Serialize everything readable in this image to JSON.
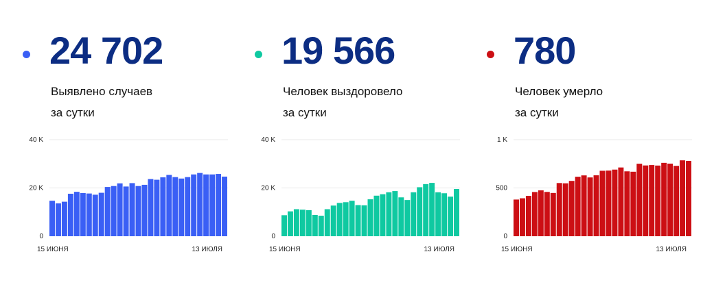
{
  "panels": [
    {
      "value": "24 702",
      "desc_line1": "Выявлено случаев",
      "desc_line2": "за сутки",
      "color": "#3a5ff5"
    },
    {
      "value": "19 566",
      "desc_line1": "Человек выздоровело",
      "desc_line2": "за сутки",
      "color": "#0fc9a1"
    },
    {
      "value": "780",
      "desc_line1": "Человек умерло",
      "desc_line2": "за сутки",
      "color": "#cc0f14"
    }
  ],
  "chart_data": [
    {
      "type": "bar",
      "x_start_label": "15 ИЮНЯ",
      "x_end_label": "13 ИЮЛЯ",
      "ylim": [
        0,
        40000
      ],
      "y_ticks": [
        0,
        20000,
        40000
      ],
      "y_tick_labels": [
        "0",
        "20 K",
        "40 K"
      ],
      "grid": true,
      "color": "#3a5ff5",
      "values": [
        14700,
        13600,
        14300,
        17600,
        18400,
        17900,
        17700,
        17200,
        18000,
        20400,
        20800,
        21900,
        20600,
        22000,
        20800,
        21300,
        23700,
        23400,
        24400,
        25400,
        24500,
        23900,
        24500,
        25600,
        26200,
        25600,
        25600,
        25800,
        24702
      ]
    },
    {
      "type": "bar",
      "x_start_label": "15 ИЮНЯ",
      "x_end_label": "13 ИЮЛЯ",
      "ylim": [
        0,
        40000
      ],
      "y_ticks": [
        0,
        20000,
        40000
      ],
      "y_tick_labels": [
        "0",
        "20 K",
        "40 K"
      ],
      "grid": true,
      "color": "#0fc9a1",
      "values": [
        8700,
        10300,
        11200,
        11000,
        10800,
        8800,
        8500,
        11200,
        12700,
        13800,
        14100,
        14700,
        12900,
        12800,
        15300,
        16800,
        17400,
        18200,
        18700,
        16100,
        15000,
        18200,
        20300,
        21600,
        22100,
        18200,
        17800,
        16400,
        19566
      ]
    },
    {
      "type": "bar",
      "x_start_label": "15 ИЮНЯ",
      "x_end_label": "13 ИЮЛЯ",
      "ylim": [
        0,
        1000
      ],
      "y_ticks": [
        0,
        500,
        1000
      ],
      "y_tick_labels": [
        "0",
        "500",
        "1 K"
      ],
      "grid": true,
      "color": "#cc0f14",
      "values": [
        380,
        393,
        418,
        458,
        475,
        459,
        448,
        551,
        548,
        573,
        616,
        630,
        609,
        631,
        678,
        680,
        690,
        712,
        672,
        668,
        751,
        733,
        737,
        732,
        760,
        752,
        729,
        786,
        780
      ]
    }
  ]
}
